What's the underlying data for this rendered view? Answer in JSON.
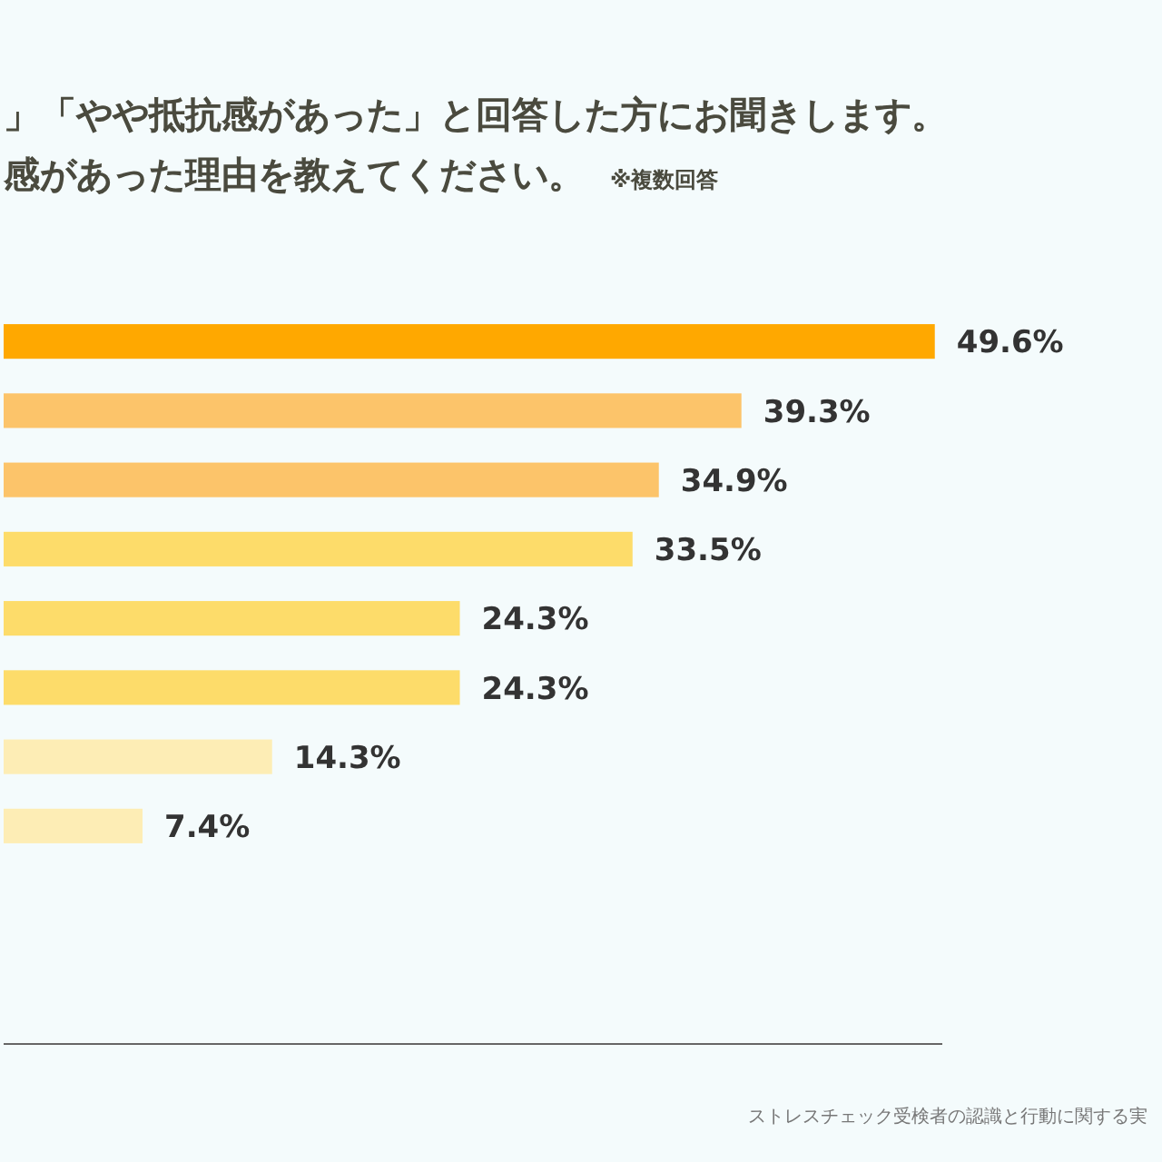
{
  "chart_data": {
    "type": "bar",
    "orientation": "horizontal",
    "title": "」「やや抵抗感があった」と回答した方にお聞きします。感があった理由を教えてください。",
    "subtitle": "※複数回答",
    "categories": [
      null,
      null,
      null,
      null,
      null,
      null,
      null,
      null
    ],
    "values": [
      49.6,
      39.3,
      34.9,
      33.5,
      24.3,
      24.3,
      14.3,
      7.4
    ],
    "colors": [
      "#ffa800",
      "#fcc46a",
      "#fcc46a",
      "#fddc6a",
      "#fddc6a",
      "#fddc6a",
      "#fdedb5",
      "#fdedb5"
    ],
    "value_labels": [
      "49.6%",
      "39.3%",
      "34.9%",
      "33.5%",
      "24.3%",
      "24.3%",
      "14.3%",
      "7.4%"
    ],
    "xlim": [
      0,
      50
    ],
    "annotations": [
      "ストレスチェック受検者の認識と行動に関する実"
    ]
  }
}
